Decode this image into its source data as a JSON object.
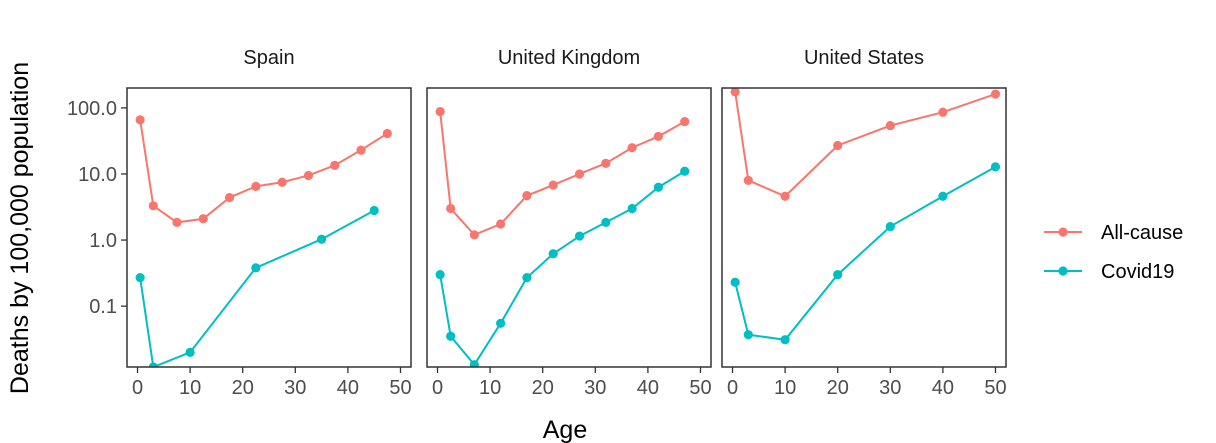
{
  "chart_data": {
    "type": "line",
    "xlabel": "Age",
    "ylabel": "Deaths by 100,000 population",
    "y_scale": "log10",
    "ylim": [
      0.012,
      200
    ],
    "y_ticks": [
      0.1,
      1,
      10,
      100
    ],
    "y_tick_labels": [
      "0.1",
      "1.0",
      "10.0",
      "100.0"
    ],
    "xlim": [
      -2,
      52
    ],
    "x_ticks": [
      0,
      10,
      20,
      30,
      40,
      50
    ],
    "x_tick_labels": [
      "0",
      "10",
      "20",
      "30",
      "40",
      "50"
    ],
    "grid": false,
    "legend_position": "right",
    "series_colors": {
      "All-cause": "#F8766D",
      "Covid19": "#00BFC4"
    },
    "legend": [
      "All-cause",
      "Covid19"
    ],
    "panels": [
      {
        "name": "Spain",
        "series": [
          {
            "name": "All-cause",
            "x": [
              0.5,
              3,
              7.5,
              12.5,
              17.5,
              22.5,
              27.5,
              32.5,
              37.5,
              42.5,
              47.5
            ],
            "y": [
              66,
              3.3,
              1.85,
              2.1,
              4.4,
              6.5,
              7.5,
              9.5,
              13.5,
              23,
              41
            ]
          },
          {
            "name": "Covid19",
            "x": [
              0.5,
              3,
              10,
              22.5,
              35,
              45
            ],
            "y": [
              0.27,
              0.012,
              0.02,
              0.38,
              1.03,
              2.8
            ]
          }
        ]
      },
      {
        "name": "United Kingdom",
        "series": [
          {
            "name": "All-cause",
            "x": [
              0.5,
              2.5,
              7,
              12,
              17,
              22,
              27,
              32,
              37,
              42,
              47
            ],
            "y": [
              88,
              3.0,
              1.2,
              1.75,
              4.7,
              6.8,
              10,
              14.5,
              25,
              37,
              62
            ]
          },
          {
            "name": "Covid19",
            "x": [
              0.5,
              2.5,
              7,
              12,
              17,
              22,
              27,
              32,
              37,
              42,
              47
            ],
            "y": [
              0.3,
              0.035,
              0.013,
              0.055,
              0.27,
              0.62,
              1.15,
              1.85,
              3.0,
              6.3,
              11
            ]
          }
        ]
      },
      {
        "name": "United States",
        "series": [
          {
            "name": "All-cause",
            "x": [
              0.5,
              3,
              10,
              20,
              30,
              40,
              50
            ],
            "y": [
              175,
              8,
              4.6,
              27,
              54,
              86,
              162
            ]
          },
          {
            "name": "Covid19",
            "x": [
              0.5,
              3,
              10,
              20,
              30,
              40,
              50
            ],
            "y": [
              0.23,
              0.037,
              0.031,
              0.3,
              1.6,
              4.6,
              12.8
            ]
          }
        ]
      }
    ]
  }
}
